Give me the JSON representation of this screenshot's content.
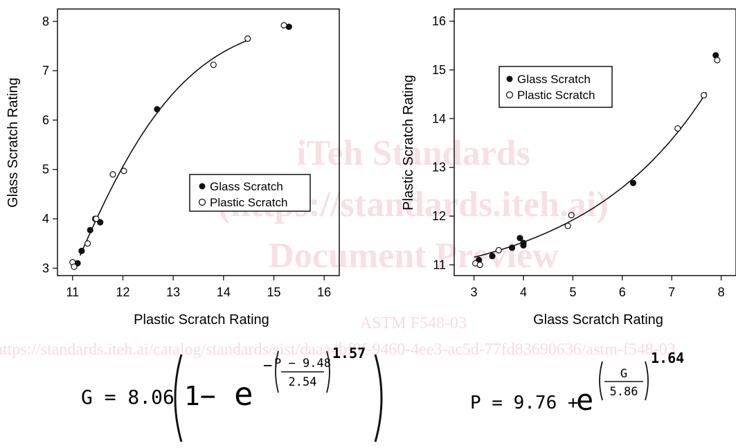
{
  "watermark": {
    "line1": "iTeh Standards",
    "line2": "(https://standards.iteh.ai)",
    "line3": "Document Preview",
    "std": "ASTM F548-03",
    "url": "https://standards.iteh.ai/catalog/standards/sist/daaa4bf8f-9460-4ee3-ac5d-77fd83690636/astm-f548-03"
  },
  "colors": {
    "ink": "#111111",
    "watermark": "#f3c6cf"
  },
  "chart_data": [
    {
      "type": "scatter",
      "xlabel": "Plastic Scratch Rating",
      "ylabel": "Glass Scratch Rating",
      "xlim": [
        10.7,
        16.3
      ],
      "ylim": [
        2.85,
        8.25
      ],
      "xticks": [
        11,
        12,
        13,
        14,
        15,
        16
      ],
      "yticks": [
        3,
        4,
        5,
        6,
        7,
        8
      ],
      "legend_position": "center-right",
      "legend": [
        "Glass Scratch",
        "Plastic Scratch"
      ],
      "series": [
        {
          "name": "Glass Scratch",
          "marker": "filled",
          "x": [
            11.1,
            11.18,
            11.35,
            11.45,
            11.55,
            12.68,
            15.3
          ],
          "y": [
            3.1,
            3.35,
            3.77,
            4.0,
            3.93,
            6.22,
            7.89
          ]
        },
        {
          "name": "Plastic Scratch",
          "marker": "open",
          "x": [
            11.0,
            11.03,
            11.3,
            11.47,
            11.8,
            12.02,
            13.8,
            14.48,
            15.2
          ],
          "y": [
            3.12,
            3.03,
            3.5,
            4.0,
            4.9,
            4.97,
            7.12,
            7.65,
            7.92
          ]
        }
      ],
      "fit": {
        "xrange": [
          11.15,
          14.45
        ],
        "formula": [
          "G = 8.06",
          "1−",
          "e",
          "P − 9.48",
          "2.54",
          "1.57"
        ]
      }
    },
    {
      "type": "scatter",
      "xlabel": "Glass Scratch Rating",
      "ylabel": "Plastic Scratch Rating",
      "xlim": [
        2.6,
        8.3
      ],
      "ylim": [
        10.78,
        16.25
      ],
      "xticks": [
        3,
        4,
        5,
        6,
        7,
        8
      ],
      "yticks": [
        11,
        12,
        13,
        14,
        15,
        16
      ],
      "legend_position": "top-left",
      "legend": [
        "Glass Scratch",
        "Plastic Scratch"
      ],
      "series": [
        {
          "name": "Glass Scratch",
          "marker": "filled",
          "x": [
            3.1,
            3.37,
            3.77,
            3.93,
            4.0,
            4.0,
            6.22,
            7.89
          ],
          "y": [
            11.1,
            11.18,
            11.35,
            11.55,
            11.45,
            11.4,
            12.68,
            15.3
          ]
        },
        {
          "name": "Plastic Scratch",
          "marker": "open",
          "x": [
            3.03,
            3.12,
            3.5,
            4.9,
            4.97,
            7.12,
            7.65,
            7.92
          ],
          "y": [
            11.03,
            11.0,
            11.3,
            11.8,
            12.02,
            13.8,
            14.48,
            15.2
          ]
        }
      ],
      "fit": {
        "xrange": [
          3.0,
          7.7
        ],
        "formula": [
          "P = 9.76 + ",
          "e",
          "G",
          "5.86",
          "1.64"
        ]
      }
    }
  ]
}
